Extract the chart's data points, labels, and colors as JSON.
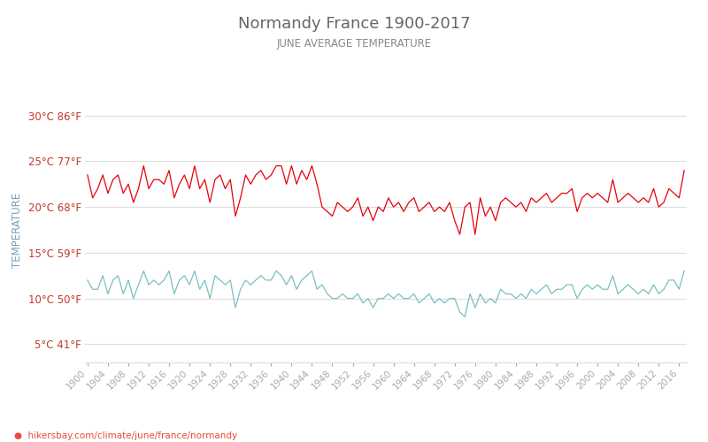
{
  "title": "Normandy France 1900-2017",
  "subtitle": "JUNE AVERAGE TEMPERATURE",
  "ylabel": "TEMPERATURE",
  "xlabel_url": "hikersbay.com/climate/june/france/normandy",
  "years": [
    1900,
    1901,
    1902,
    1903,
    1904,
    1905,
    1906,
    1907,
    1908,
    1909,
    1910,
    1911,
    1912,
    1913,
    1914,
    1915,
    1916,
    1917,
    1918,
    1919,
    1920,
    1921,
    1922,
    1923,
    1924,
    1925,
    1926,
    1927,
    1928,
    1929,
    1930,
    1931,
    1932,
    1933,
    1934,
    1935,
    1936,
    1937,
    1938,
    1939,
    1940,
    1941,
    1942,
    1943,
    1944,
    1945,
    1946,
    1947,
    1948,
    1949,
    1950,
    1951,
    1952,
    1953,
    1954,
    1955,
    1956,
    1957,
    1958,
    1959,
    1960,
    1961,
    1962,
    1963,
    1964,
    1965,
    1966,
    1967,
    1968,
    1969,
    1970,
    1971,
    1972,
    1973,
    1974,
    1975,
    1976,
    1977,
    1978,
    1979,
    1980,
    1981,
    1982,
    1983,
    1984,
    1985,
    1986,
    1987,
    1988,
    1989,
    1990,
    1991,
    1992,
    1993,
    1994,
    1995,
    1996,
    1997,
    1998,
    1999,
    2000,
    2001,
    2002,
    2003,
    2004,
    2005,
    2006,
    2007,
    2008,
    2009,
    2010,
    2011,
    2012,
    2013,
    2014,
    2015,
    2016,
    2017
  ],
  "day_temps": [
    23.5,
    21.0,
    22.0,
    23.5,
    21.5,
    23.0,
    23.5,
    21.5,
    22.5,
    20.5,
    22.0,
    24.5,
    22.0,
    23.0,
    23.0,
    22.5,
    24.0,
    21.0,
    22.5,
    23.5,
    22.0,
    24.5,
    22.0,
    23.0,
    20.5,
    23.0,
    23.5,
    22.0,
    23.0,
    19.0,
    21.0,
    23.5,
    22.5,
    23.5,
    24.0,
    23.0,
    23.5,
    24.5,
    24.5,
    22.5,
    24.5,
    22.5,
    24.0,
    23.0,
    24.5,
    22.5,
    20.0,
    19.5,
    19.0,
    20.5,
    20.0,
    19.5,
    20.0,
    21.0,
    19.0,
    20.0,
    18.5,
    20.0,
    19.5,
    21.0,
    20.0,
    20.5,
    19.5,
    20.5,
    21.0,
    19.5,
    20.0,
    20.5,
    19.5,
    20.0,
    19.5,
    20.5,
    18.5,
    17.0,
    20.0,
    20.5,
    17.0,
    21.0,
    19.0,
    20.0,
    18.5,
    20.5,
    21.0,
    20.5,
    20.0,
    20.5,
    19.5,
    21.0,
    20.5,
    21.0,
    21.5,
    20.5,
    21.0,
    21.5,
    21.5,
    22.0,
    19.5,
    21.0,
    21.5,
    21.0,
    21.5,
    21.0,
    20.5,
    23.0,
    20.5,
    21.0,
    21.5,
    21.0,
    20.5,
    21.0,
    20.5,
    22.0,
    20.0,
    20.5,
    22.0,
    21.5,
    21.0,
    24.0
  ],
  "night_temps": [
    12.0,
    11.0,
    11.0,
    12.5,
    10.5,
    12.0,
    12.5,
    10.5,
    12.0,
    10.0,
    11.5,
    13.0,
    11.5,
    12.0,
    11.5,
    12.0,
    13.0,
    10.5,
    12.0,
    12.5,
    11.5,
    13.0,
    11.0,
    12.0,
    10.0,
    12.5,
    12.0,
    11.5,
    12.0,
    9.0,
    11.0,
    12.0,
    11.5,
    12.0,
    12.5,
    12.0,
    12.0,
    13.0,
    12.5,
    11.5,
    12.5,
    11.0,
    12.0,
    12.5,
    13.0,
    11.0,
    11.5,
    10.5,
    10.0,
    10.0,
    10.5,
    10.0,
    10.0,
    10.5,
    9.5,
    10.0,
    9.0,
    10.0,
    10.0,
    10.5,
    10.0,
    10.5,
    10.0,
    10.0,
    10.5,
    9.5,
    10.0,
    10.5,
    9.5,
    10.0,
    9.5,
    10.0,
    10.0,
    8.5,
    8.0,
    10.5,
    9.0,
    10.5,
    9.5,
    10.0,
    9.5,
    11.0,
    10.5,
    10.5,
    10.0,
    10.5,
    10.0,
    11.0,
    10.5,
    11.0,
    11.5,
    10.5,
    11.0,
    11.0,
    11.5,
    11.5,
    10.0,
    11.0,
    11.5,
    11.0,
    11.5,
    11.0,
    11.0,
    12.5,
    10.5,
    11.0,
    11.5,
    11.0,
    10.5,
    11.0,
    10.5,
    11.5,
    10.5,
    11.0,
    12.0,
    12.0,
    11.0,
    13.0
  ],
  "yticks_c": [
    5,
    10,
    15,
    20,
    25,
    30
  ],
  "yticks_f": [
    41,
    50,
    59,
    68,
    77,
    86
  ],
  "ylim": [
    3,
    32
  ],
  "day_color": "#e8000d",
  "night_color": "#7bbfbf",
  "title_color": "#666666",
  "subtitle_color": "#888888",
  "ylabel_color": "#7b9dbb",
  "tick_label_color": "#c0392b",
  "url_color": "#e74c3c",
  "background_color": "#ffffff",
  "grid_color": "#dddddd",
  "legend_night_color": "#7bbfbf",
  "legend_day_color": "#e8000d",
  "legend_text_color": "#555555"
}
